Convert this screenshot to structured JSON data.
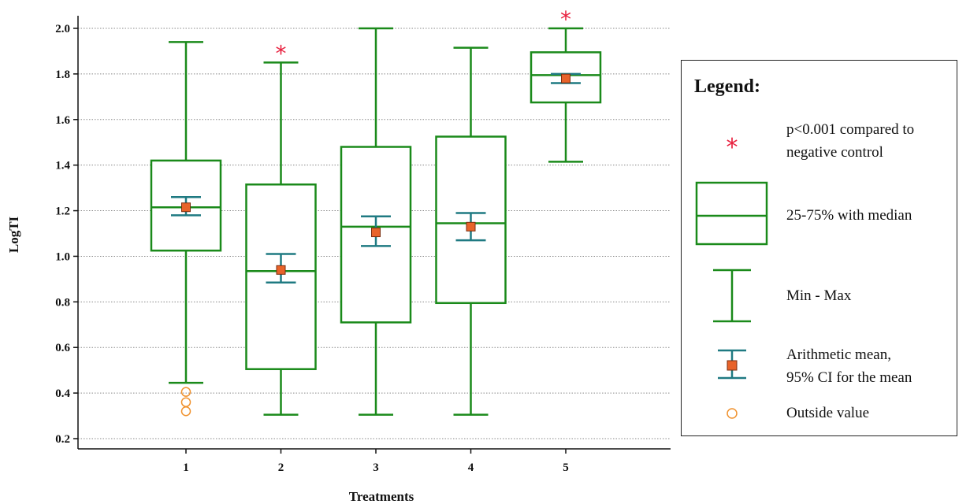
{
  "chart_data": {
    "type": "boxplot",
    "xlabel": "Treatments",
    "ylabel": "LogTI",
    "ylim": [
      0.2,
      2.0
    ],
    "yticks": [
      "0.2",
      "0.4",
      "0.6",
      "0.8",
      "1.0",
      "1.2",
      "1.4",
      "1.6",
      "1.8",
      "2.0"
    ],
    "grid": "horizontal dotted",
    "legend_position": "right",
    "colors": {
      "box": "#1a8a1a",
      "ci": "#1f7a82",
      "mean": "#e8632a",
      "star": "#e8213f",
      "outlier": "#f0922e"
    },
    "categories": [
      "1",
      "2",
      "3",
      "4",
      "5"
    ],
    "boxes": [
      {
        "category": "1",
        "min": 0.445,
        "q1": 1.025,
        "median": 1.215,
        "q3": 1.42,
        "max": 1.94,
        "mean": 1.215,
        "ci_low": 1.18,
        "ci_high": 1.26,
        "outliers": [
          0.405,
          0.36,
          0.32
        ],
        "significant": false
      },
      {
        "category": "2",
        "min": 0.305,
        "q1": 0.505,
        "median": 0.935,
        "q3": 1.315,
        "max": 1.85,
        "mean": 0.94,
        "ci_low": 0.885,
        "ci_high": 1.01,
        "outliers": [],
        "significant": true
      },
      {
        "category": "3",
        "min": 0.305,
        "q1": 0.71,
        "median": 1.13,
        "q3": 1.48,
        "max": 2.0,
        "mean": 1.105,
        "ci_low": 1.045,
        "ci_high": 1.175,
        "outliers": [],
        "significant": false
      },
      {
        "category": "4",
        "min": 0.305,
        "q1": 0.795,
        "median": 1.145,
        "q3": 1.525,
        "max": 1.915,
        "mean": 1.13,
        "ci_low": 1.07,
        "ci_high": 1.19,
        "outliers": [],
        "significant": false
      },
      {
        "category": "5",
        "min": 1.415,
        "q1": 1.675,
        "median": 1.795,
        "q3": 1.895,
        "max": 2.0,
        "mean": 1.78,
        "ci_low": 1.76,
        "ci_high": 1.8,
        "outliers": [],
        "significant": true
      }
    ],
    "legend": {
      "title": "Legend:",
      "items": [
        {
          "symbol": "star",
          "lines": [
            "p<0.001 compared to",
            "negative control"
          ]
        },
        {
          "symbol": "box",
          "lines": [
            "25-75% with median"
          ]
        },
        {
          "symbol": "whisker",
          "lines": [
            "Min - Max"
          ]
        },
        {
          "symbol": "mean-ci",
          "lines": [
            "Arithmetic mean,",
            "95% CI for the mean"
          ]
        },
        {
          "symbol": "outlier",
          "lines": [
            "Outside value"
          ]
        }
      ]
    }
  }
}
